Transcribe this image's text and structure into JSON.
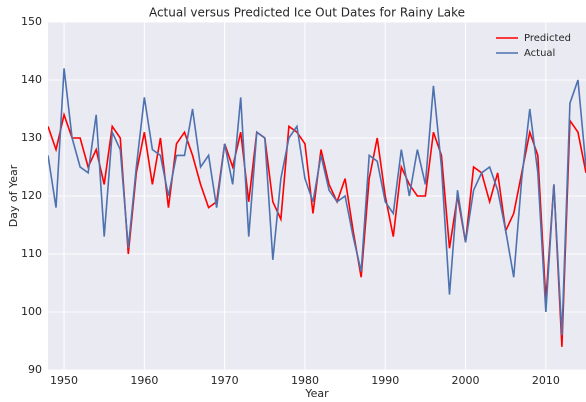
{
  "chart_data": {
    "type": "line",
    "title": "Actual versus Predicted Ice Out Dates for Rainy Lake",
    "x_label": "Year",
    "y_label": "Day of Year",
    "x": [
      1948,
      1949,
      1950,
      1951,
      1952,
      1953,
      1954,
      1955,
      1956,
      1957,
      1958,
      1959,
      1960,
      1961,
      1962,
      1963,
      1964,
      1965,
      1966,
      1967,
      1968,
      1969,
      1970,
      1971,
      1972,
      1973,
      1974,
      1975,
      1976,
      1977,
      1978,
      1979,
      1980,
      1981,
      1982,
      1983,
      1984,
      1985,
      1986,
      1987,
      1988,
      1989,
      1990,
      1991,
      1992,
      1993,
      1994,
      1995,
      1996,
      1997,
      1998,
      1999,
      2000,
      2001,
      2002,
      2003,
      2004,
      2005,
      2006,
      2007,
      2008,
      2009,
      2010,
      2011,
      2012,
      2013,
      2014,
      2015
    ],
    "series": [
      {
        "name": "Predicted",
        "color": "#ff0000",
        "values": [
          132,
          128,
          134,
          130,
          130,
          125,
          128,
          122,
          132,
          130,
          110,
          124,
          131,
          122,
          130,
          118,
          129,
          131,
          127,
          122,
          118,
          119,
          129,
          125,
          131,
          119,
          131,
          130,
          119,
          116,
          132,
          131,
          129,
          117,
          128,
          122,
          119,
          123,
          114,
          106,
          123,
          130,
          120,
          113,
          125,
          122,
          120,
          120,
          131,
          127,
          111,
          120,
          112,
          125,
          124,
          119,
          124,
          114,
          117,
          124,
          131,
          127,
          102,
          122,
          94,
          133,
          131,
          124
        ]
      },
      {
        "name": "Actual",
        "color": "#4c72b0",
        "values": [
          127,
          118,
          142,
          130,
          125,
          124,
          134,
          113,
          131,
          128,
          111,
          125,
          137,
          128,
          127,
          120,
          127,
          127,
          135,
          125,
          127,
          118,
          129,
          122,
          137,
          113,
          131,
          130,
          109,
          123,
          130,
          132,
          123,
          119,
          127,
          121,
          119,
          120,
          113,
          107,
          127,
          126,
          119,
          117,
          128,
          120,
          128,
          122,
          139,
          125,
          103,
          121,
          112,
          121,
          124,
          125,
          121,
          114,
          106,
          123,
          135,
          124,
          100,
          122,
          96,
          136,
          140,
          125
        ]
      }
    ],
    "xlim": [
      1948,
      2015
    ],
    "xticks": [
      1950,
      1960,
      1970,
      1980,
      1990,
      2000,
      2010
    ],
    "ylim": [
      90,
      150
    ],
    "yticks": [
      90,
      100,
      110,
      120,
      130,
      140,
      150
    ],
    "grid": true,
    "legend": "upper right"
  }
}
